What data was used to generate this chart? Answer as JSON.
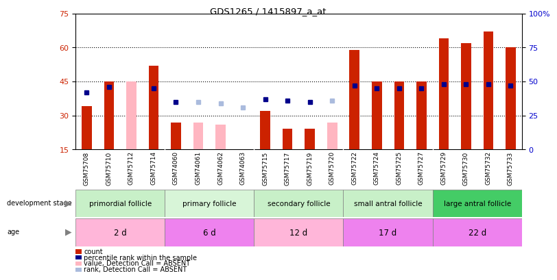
{
  "title": "GDS1265 / 1415897_a_at",
  "samples": [
    "GSM75708",
    "GSM75710",
    "GSM75712",
    "GSM75714",
    "GSM74060",
    "GSM74061",
    "GSM74062",
    "GSM74063",
    "GSM75715",
    "GSM75717",
    "GSM75719",
    "GSM75720",
    "GSM75722",
    "GSM75724",
    "GSM75725",
    "GSM75727",
    "GSM75729",
    "GSM75730",
    "GSM75732",
    "GSM75733"
  ],
  "count_values": [
    34,
    45,
    null,
    52,
    27,
    null,
    null,
    null,
    32,
    24,
    24,
    null,
    59,
    45,
    45,
    45,
    64,
    62,
    67,
    60
  ],
  "rank_values": [
    42,
    46,
    null,
    45,
    35,
    null,
    null,
    null,
    37,
    36,
    35,
    null,
    47,
    45,
    45,
    45,
    48,
    48,
    48,
    47
  ],
  "count_absent": [
    null,
    null,
    45,
    null,
    null,
    27,
    26,
    null,
    null,
    null,
    null,
    27,
    null,
    null,
    null,
    null,
    null,
    null,
    null,
    null
  ],
  "rank_absent": [
    null,
    null,
    null,
    null,
    null,
    35,
    34,
    31,
    null,
    null,
    null,
    36,
    null,
    null,
    null,
    null,
    null,
    null,
    null,
    null
  ],
  "groups": [
    {
      "label": "primordial follicle",
      "start": 0,
      "end": 4,
      "color": "#C8F0C8"
    },
    {
      "label": "primary follicle",
      "start": 4,
      "end": 8,
      "color": "#D8F5D8"
    },
    {
      "label": "secondary follicle",
      "start": 8,
      "end": 12,
      "color": "#C8F0C8"
    },
    {
      "label": "small antral follicle",
      "start": 12,
      "end": 16,
      "color": "#C8F0C8"
    },
    {
      "label": "large antral follicle",
      "start": 16,
      "end": 20,
      "color": "#44CC66"
    }
  ],
  "ages": [
    {
      "label": "2 d",
      "start": 0,
      "end": 4,
      "color": "#FFB6D9"
    },
    {
      "label": "6 d",
      "start": 4,
      "end": 8,
      "color": "#EE82EE"
    },
    {
      "label": "12 d",
      "start": 8,
      "end": 12,
      "color": "#FFB6D9"
    },
    {
      "label": "17 d",
      "start": 12,
      "end": 16,
      "color": "#EE82EE"
    },
    {
      "label": "22 d",
      "start": 16,
      "end": 20,
      "color": "#EE82EE"
    }
  ],
  "ylim_left": [
    15,
    75
  ],
  "ylim_right": [
    0,
    100
  ],
  "yticks_left": [
    15,
    30,
    45,
    60,
    75
  ],
  "yticks_right": [
    0,
    25,
    50,
    75,
    100
  ],
  "bar_color": "#CC2200",
  "rank_color": "#00008B",
  "absent_bar_color": "#FFB6C1",
  "absent_rank_color": "#AABBDD",
  "background_color": "#ffffff",
  "xticklabel_bg": "#D3D3D3"
}
